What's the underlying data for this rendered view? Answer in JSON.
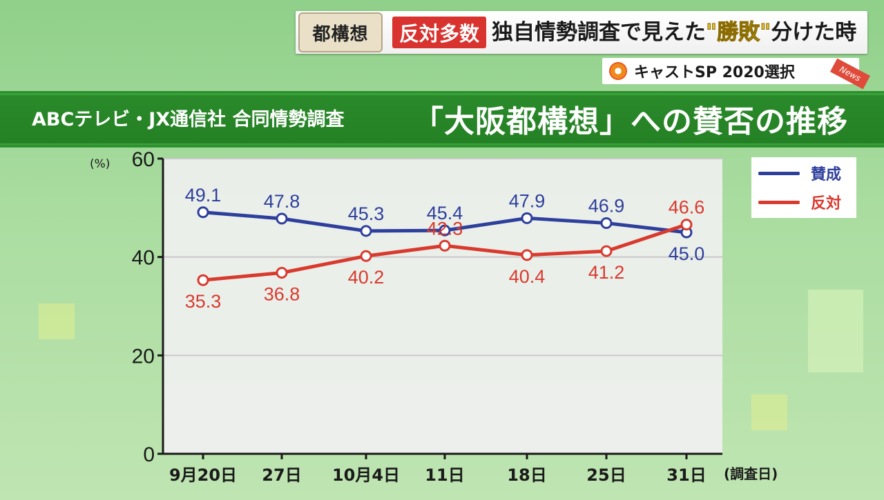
{
  "caption": {
    "tag": "都構想",
    "badge": "反対多数",
    "headline_pre": "独自情勢調査で見えた",
    "headline_q1": "\"",
    "headline_key": "勝敗",
    "headline_q2": "\"",
    "headline_post": "分けた時"
  },
  "program": {
    "name": "キャストSP 2020選択",
    "news_tag": "News"
  },
  "title_band": {
    "subtitle": "ABCテレビ・JX通信社 合同情勢調査",
    "title": "「大阪都構想」への賛否の推移"
  },
  "chart_data": {
    "type": "line",
    "title": "「大阪都構想」への賛否の推移",
    "ylabel": "(%)",
    "xlabel": "(調査日)",
    "ylim": [
      0,
      60
    ],
    "yticks": [
      0,
      20,
      40,
      60
    ],
    "grid": true,
    "legend": "top-right",
    "categories": [
      "9月20日",
      "27日",
      "10月4日",
      "11日",
      "18日",
      "25日",
      "31日"
    ],
    "series": [
      {
        "name": "賛成",
        "color": "#2e3f9c",
        "values": [
          49.1,
          47.8,
          45.3,
          45.4,
          47.9,
          46.9,
          45.0
        ],
        "labels": [
          "49.1",
          "47.8",
          "45.3",
          "45.4",
          "47.9",
          "46.9",
          "45.0"
        ]
      },
      {
        "name": "反対",
        "color": "#d93a2e",
        "values": [
          35.3,
          36.8,
          40.2,
          42.3,
          40.4,
          41.2,
          46.6
        ],
        "labels": [
          "35.3",
          "36.8",
          "40.2",
          "42.3",
          "40.4",
          "41.2",
          "46.6"
        ]
      }
    ]
  }
}
